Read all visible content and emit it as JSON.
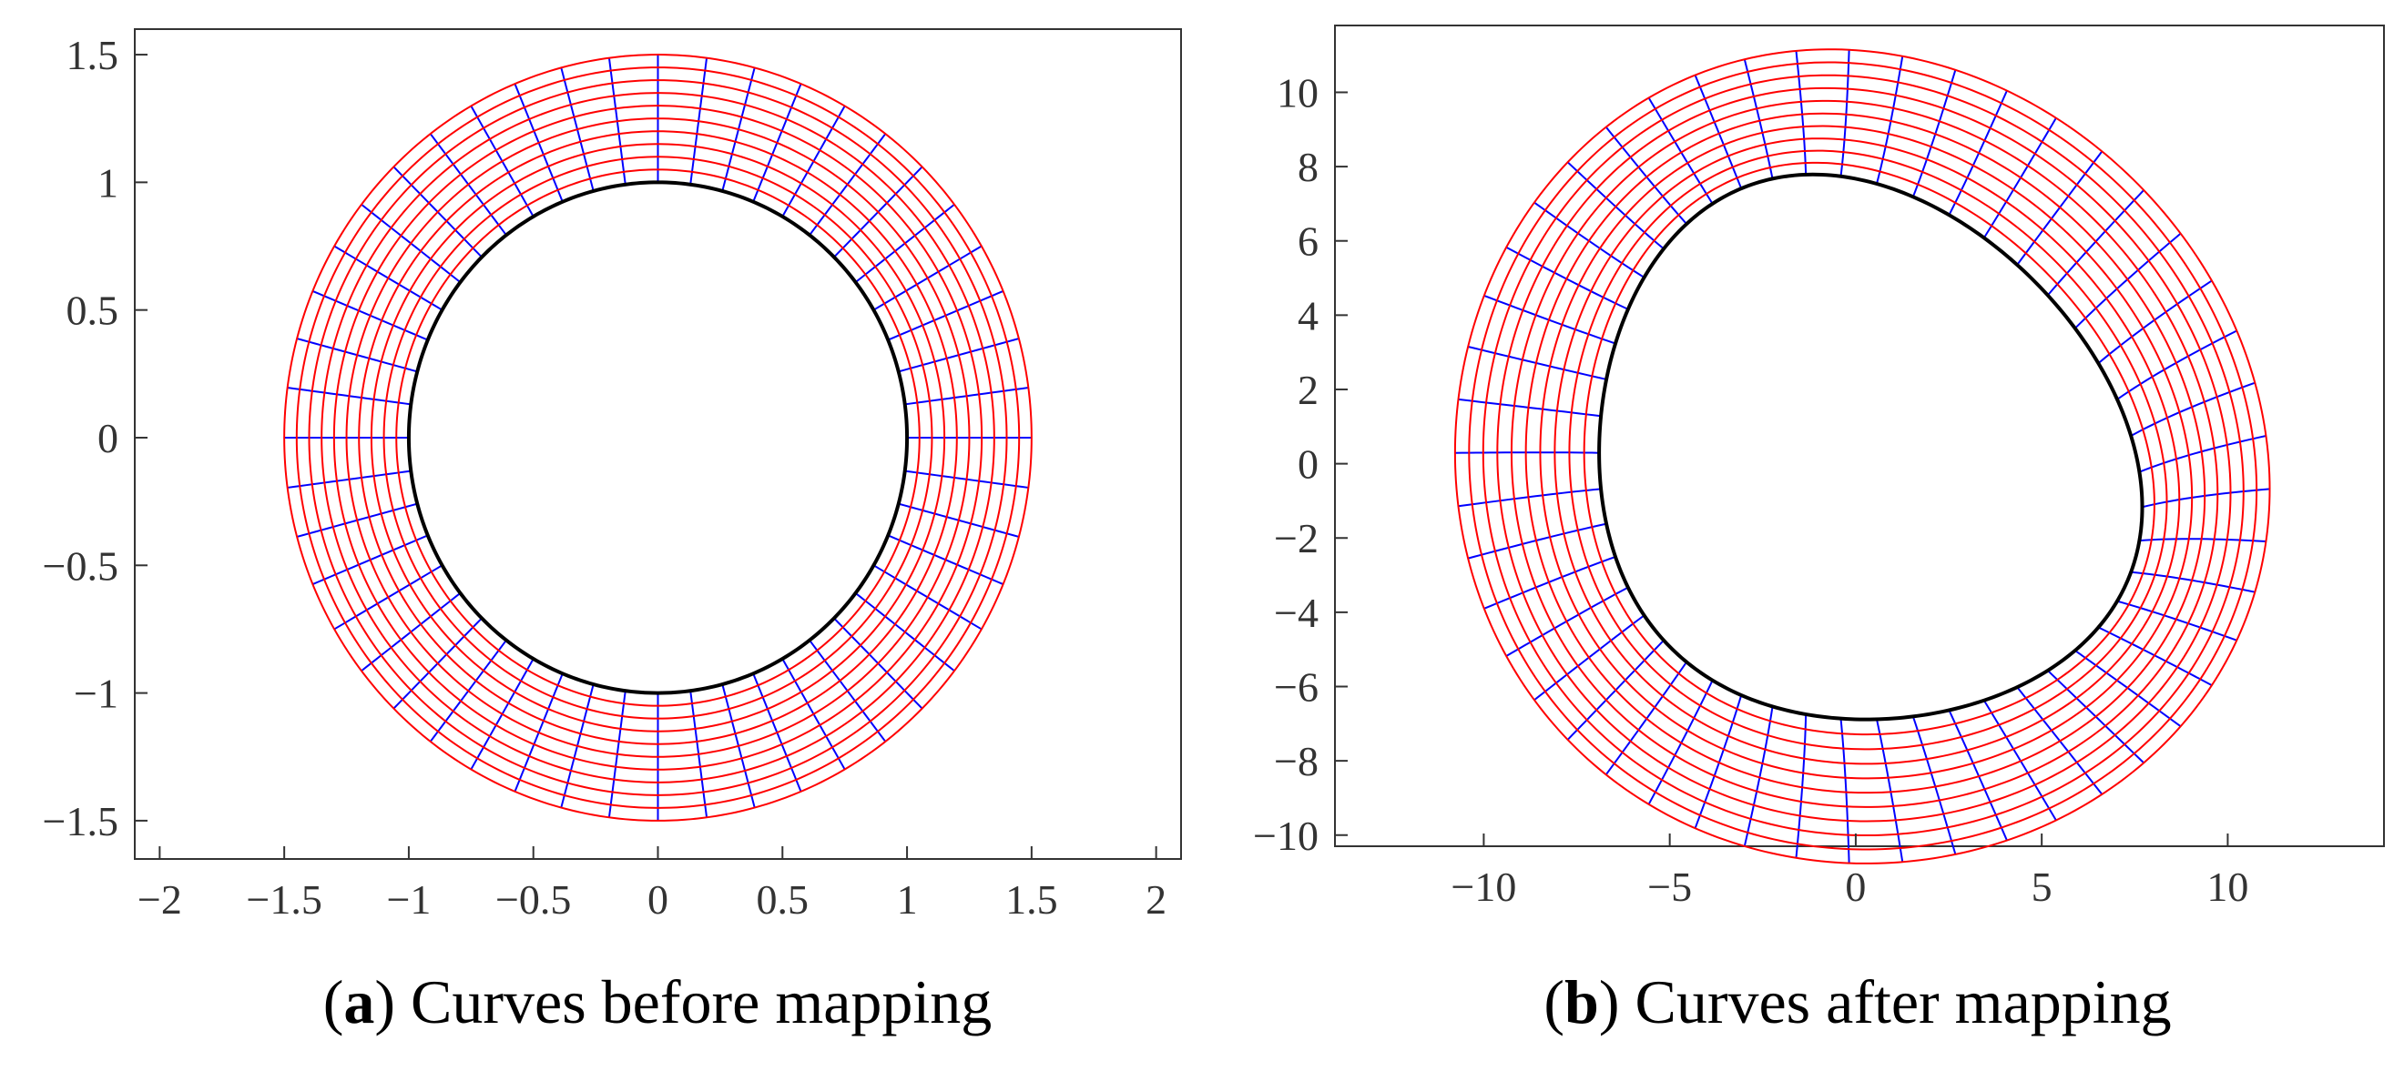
{
  "chart_data": [
    {
      "type": "curvilinear-grid",
      "panel": "a",
      "caption_letter": "a",
      "caption_text": "Curves before mapping",
      "xlim": [
        -2.1,
        2.1
      ],
      "ylim": [
        -1.65,
        1.6
      ],
      "xticks": [
        -2,
        -1.5,
        -1,
        -0.5,
        0,
        0.5,
        1,
        1.5,
        2
      ],
      "xtick_labels": [
        "−2",
        "−1.5",
        "−1",
        "−0.5",
        "0",
        "0.5",
        "1",
        "1.5",
        "2"
      ],
      "yticks": [
        -1.5,
        -1,
        -0.5,
        0,
        0.5,
        1,
        1.5
      ],
      "ytick_labels": [
        "−1.5",
        "−1",
        "−0.5",
        "0",
        "0.5",
        "1",
        "1.5"
      ],
      "inner_radius": 1.0,
      "outer_radius": 1.5,
      "circle_count": 11,
      "radial_line_count": 48,
      "mapped": false,
      "scale": 1,
      "colors": {
        "circles": "#ff0000",
        "radials": "#0000ff",
        "boundary": "#000000"
      }
    },
    {
      "type": "curvilinear-grid",
      "panel": "b",
      "caption_letter": "b",
      "caption_text": "Curves after mapping",
      "xlim": [
        -14,
        14.2
      ],
      "ylim": [
        -10.3,
        11.8
      ],
      "xticks": [
        -10,
        -5,
        0,
        5,
        10
      ],
      "xtick_labels": [
        "−10",
        "−5",
        "0",
        "5",
        "10"
      ],
      "yticks": [
        -10,
        -8,
        -6,
        -4,
        -2,
        0,
        2,
        4,
        6,
        8,
        10
      ],
      "ytick_labels": [
        "−10",
        "−8",
        "−6",
        "−4",
        "−2",
        "0",
        "2",
        "4",
        "6",
        "8",
        "10"
      ],
      "inner_radius": 1.0,
      "outer_radius": 1.5,
      "circle_count": 11,
      "radial_line_count": 48,
      "mapped": true,
      "scale": 7.3,
      "mapping_coeffs": {
        "a2": 0.055,
        "b2": -0.1,
        "b3": -0.015
      },
      "colors": {
        "circles": "#ff0000",
        "radials": "#0000ff",
        "boundary": "#000000"
      }
    }
  ]
}
